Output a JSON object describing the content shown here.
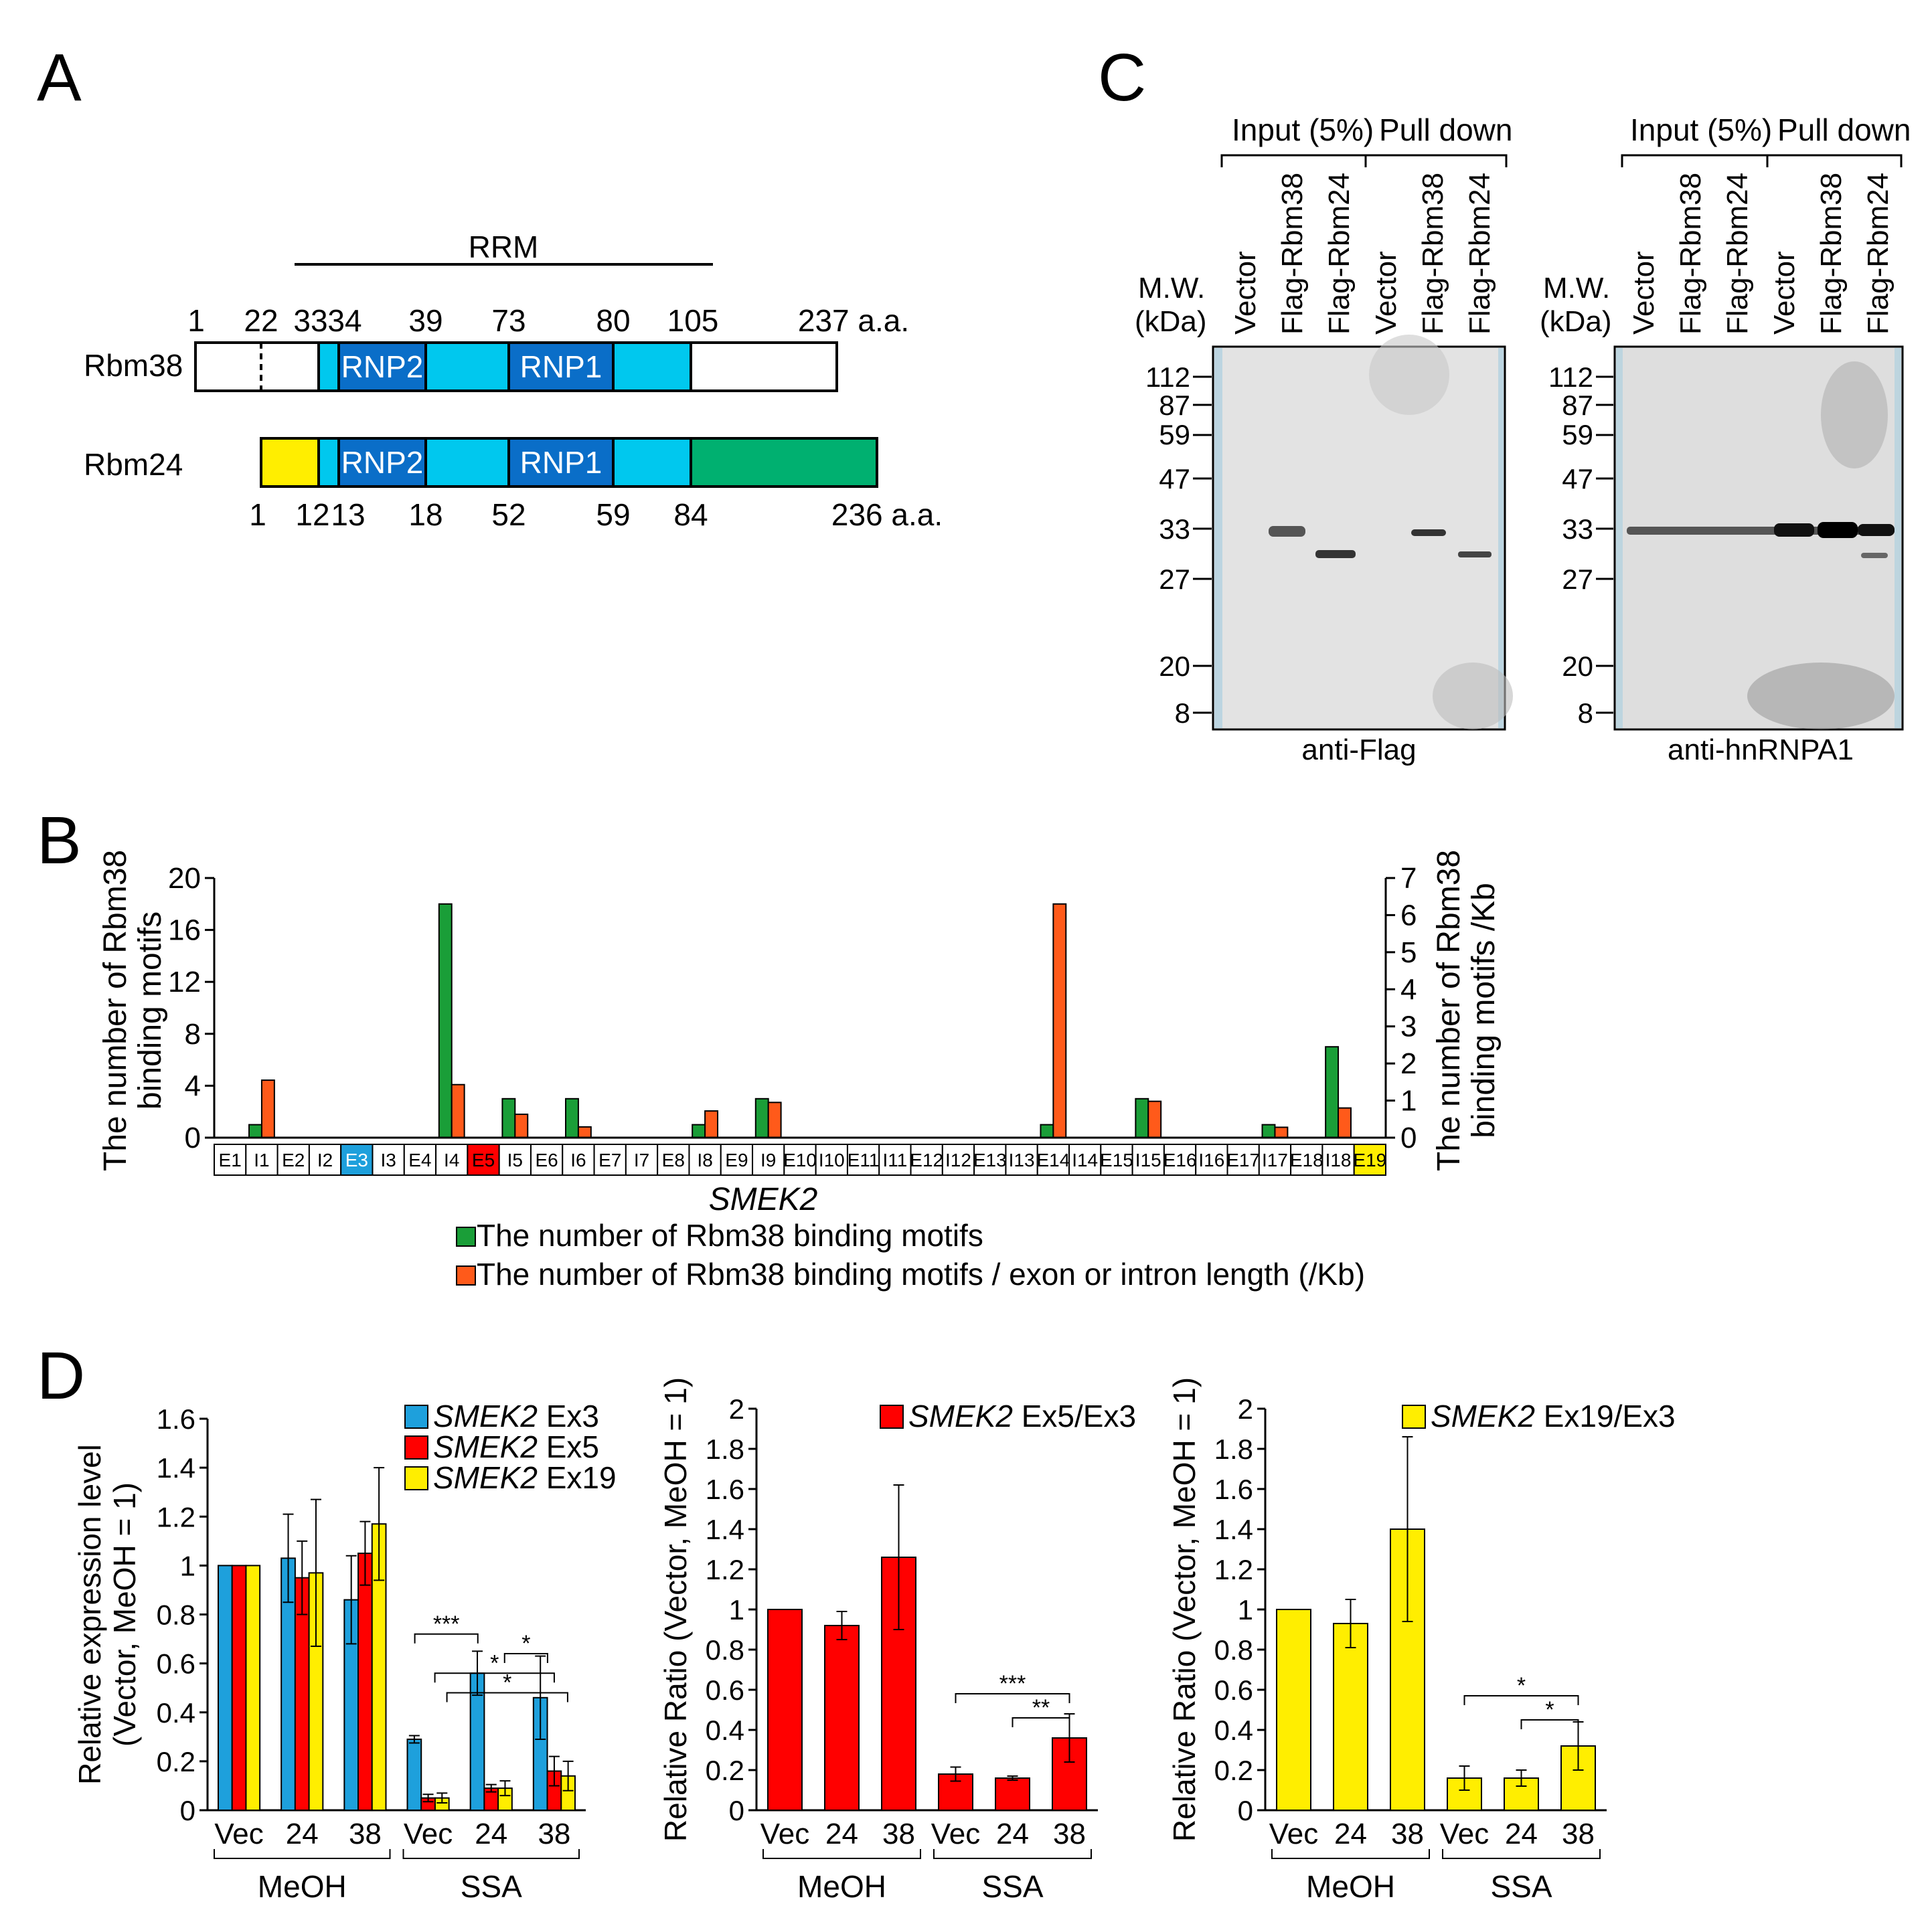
{
  "colors": {
    "blue": "#1ea0dc",
    "red": "#ff0000",
    "yellow": "#ffee00",
    "green": "#1a9e38",
    "orange": "#ff5a1a",
    "rrm_light": "#00c8ee",
    "rnp_dark": "#0a6ec8",
    "rbm24_n": "#ffee00",
    "rbm24_c": "#00b070"
  },
  "panel_labels": {
    "a": "A",
    "b": "B",
    "c": "C",
    "d": "D"
  },
  "panel_a": {
    "rrm_label": "RRM",
    "rnp2": "RNP2",
    "rnp1": "RNP1",
    "rbm38": {
      "name": "Rbm38",
      "positions": [
        "1",
        "22",
        "33",
        "34",
        "39",
        "73",
        "80",
        "105",
        "237 a.a."
      ]
    },
    "rbm24": {
      "name": "Rbm24",
      "positions": [
        "1",
        "12",
        "13",
        "18",
        "52",
        "59",
        "84",
        "236 a.a."
      ]
    }
  },
  "panel_b": {
    "gene": "SMEK2",
    "y_left_label": [
      "The number of Rbm38",
      "binding motifs"
    ],
    "y_right_label": [
      "The number of Rbm38",
      "binding motifs /Kb"
    ],
    "legend": [
      "The number of Rbm38 binding motifs",
      "The number of Rbm38 binding motifs / exon or intron length (/Kb)"
    ]
  },
  "panel_c": {
    "mw_label": [
      "M.W.",
      "(kDa)"
    ],
    "group_input": "Input (5%)",
    "group_pulldown": "Pull down",
    "lanes": [
      "Vector",
      "Flag-Rbm38",
      "Flag-Rbm24",
      "Vector",
      "Flag-Rbm38",
      "Flag-Rbm24"
    ],
    "markers": [
      "112",
      "87",
      "59",
      "47",
      "33",
      "27",
      "20",
      "8"
    ],
    "blot1_label": "anti-Flag",
    "blot2_label": "anti-hnRNPA1"
  },
  "panel_d": {
    "group_labels": [
      "MeOH",
      "SSA"
    ]
  },
  "chart_data": [
    {
      "type": "bar",
      "id": "B",
      "categories": [
        "E1",
        "I1",
        "E2",
        "I2",
        "E3",
        "I3",
        "E4",
        "I4",
        "E5",
        "I5",
        "E6",
        "I6",
        "E7",
        "I7",
        "E8",
        "I8",
        "E9",
        "I9",
        "E10",
        "I10",
        "E11",
        "I11",
        "E12",
        "I12",
        "E13",
        "I13",
        "E14",
        "I14",
        "E15",
        "I15",
        "E16",
        "I16",
        "E17",
        "I17",
        "E18",
        "I18",
        "E19"
      ],
      "highlight": {
        "E3": "#1ea0dc",
        "E5": "#ff0000",
        "E19": "#ffee00"
      },
      "series": [
        {
          "name": "The number of Rbm38 binding motifs",
          "axis": "left",
          "values": [
            0,
            1,
            0,
            0,
            0,
            0,
            0,
            18,
            0,
            3,
            0,
            3,
            0,
            0,
            0,
            1,
            0,
            3,
            0,
            0,
            0,
            0,
            0,
            0,
            0,
            0,
            1,
            0,
            0,
            3,
            0,
            0,
            0,
            1,
            0,
            7,
            0
          ]
        },
        {
          "name": "The number of Rbm38 binding motifs / exon or intron length (/Kb)",
          "axis": "right",
          "values": [
            0,
            1.55,
            0,
            0,
            0,
            0,
            0,
            1.43,
            0,
            0.63,
            0,
            0.29,
            0,
            0,
            0,
            0.72,
            0,
            0.95,
            0,
            0,
            0,
            0,
            0,
            0,
            0,
            0,
            6.3,
            0,
            0,
            0.98,
            0,
            0,
            0,
            0.28,
            0,
            0.8,
            0
          ]
        }
      ],
      "ylim_left": [
        0,
        20
      ],
      "yticks_left": [
        "0",
        "4",
        "8",
        "12",
        "16",
        "20"
      ],
      "ylim_right": [
        0,
        7
      ],
      "yticks_right": [
        "0",
        "1",
        "2",
        "3",
        "4",
        "5",
        "6",
        "7"
      ],
      "xlabel": "SMEK2"
    },
    {
      "type": "bar",
      "id": "D1",
      "categories": [
        "Vec",
        "24",
        "38",
        "Vec",
        "24",
        "38"
      ],
      "groups": [
        "MeOH",
        "SSA"
      ],
      "series": [
        {
          "name": "SMEK2 Ex3",
          "color": "#1ea0dc",
          "values": [
            1,
            1.03,
            0.86,
            0.29,
            0.56,
            0.46
          ],
          "errors": [
            0,
            0.18,
            0.18,
            0.015,
            0.09,
            0.17
          ]
        },
        {
          "name": "SMEK2 Ex5",
          "color": "#ff0000",
          "values": [
            1,
            0.95,
            1.05,
            0.05,
            0.09,
            0.16
          ],
          "errors": [
            0,
            0.15,
            0.13,
            0.015,
            0.015,
            0.06
          ]
        },
        {
          "name": "SMEK2 Ex19",
          "color": "#ffee00",
          "values": [
            1,
            0.97,
            1.17,
            0.05,
            0.09,
            0.14
          ],
          "errors": [
            0,
            0.3,
            0.23,
            0.02,
            0.03,
            0.06
          ]
        }
      ],
      "ylabel": [
        "Relative expression level",
        "(Vector, MeOH = 1)"
      ],
      "ylim": [
        0,
        1.6
      ],
      "yticks": [
        "0",
        "0.2",
        "0.4",
        "0.6",
        "0.8",
        "1",
        "1.2",
        "1.4",
        "1.6"
      ],
      "significance": [
        "***",
        "*",
        "*",
        "*"
      ]
    },
    {
      "type": "bar",
      "id": "D2",
      "categories": [
        "Vec",
        "24",
        "38",
        "Vec",
        "24",
        "38"
      ],
      "groups": [
        "MeOH",
        "SSA"
      ],
      "series": [
        {
          "name": "SMEK2 Ex5/Ex3",
          "color": "#ff0000",
          "values": [
            1,
            0.92,
            1.26,
            0.18,
            0.16,
            0.36
          ],
          "errors": [
            0,
            0.07,
            0.36,
            0.035,
            0.01,
            0.12
          ]
        }
      ],
      "ylabel": [
        "Relative Ratio (Vector, MeOH = 1)"
      ],
      "ylim": [
        0,
        2
      ],
      "yticks": [
        "0",
        "0.2",
        "0.4",
        "0.6",
        "0.8",
        "1",
        "1.2",
        "1.4",
        "1.6",
        "1.8",
        "2"
      ],
      "significance": [
        "***",
        "**"
      ]
    },
    {
      "type": "bar",
      "id": "D3",
      "categories": [
        "Vec",
        "24",
        "38",
        "Vec",
        "24",
        "38"
      ],
      "groups": [
        "MeOH",
        "SSA"
      ],
      "series": [
        {
          "name": "SMEK2 Ex19/Ex3",
          "color": "#ffee00",
          "values": [
            1,
            0.93,
            1.4,
            0.16,
            0.16,
            0.32
          ],
          "errors": [
            0,
            0.12,
            0.46,
            0.06,
            0.04,
            0.12
          ]
        }
      ],
      "ylabel": [
        "Relative Ratio (Vector, MeOH = 1)"
      ],
      "ylim": [
        0,
        2
      ],
      "yticks": [
        "0",
        "0.2",
        "0.4",
        "0.6",
        "0.8",
        "1",
        "1.2",
        "1.4",
        "1.6",
        "1.8",
        "2"
      ],
      "significance": [
        "*",
        "*"
      ]
    }
  ]
}
